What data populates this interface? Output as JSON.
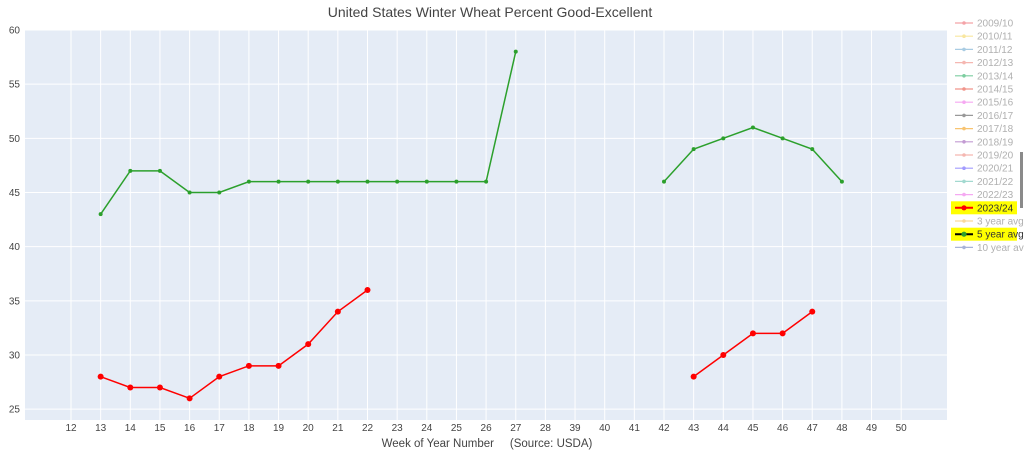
{
  "chart_data": {
    "type": "line",
    "title": "United States Winter Wheat Percent Good-Excellent",
    "xlabel": "Week of Year Number     (Source: USDA)",
    "ylabel": "",
    "categories": [
      "12",
      "13",
      "14",
      "15",
      "16",
      "17",
      "18",
      "19",
      "20",
      "21",
      "22",
      "23",
      "24",
      "25",
      "26",
      "27",
      "28",
      "39",
      "40",
      "41",
      "42",
      "43",
      "44",
      "45",
      "46",
      "47",
      "48",
      "49",
      "50"
    ],
    "ylim": [
      24,
      60
    ],
    "yticks": [
      25,
      30,
      35,
      40,
      45,
      50,
      55,
      60
    ],
    "grid": true,
    "legend_position": "right",
    "legend": [
      {
        "name": "2009/10",
        "color": "#f4a3a8",
        "highlight": false
      },
      {
        "name": "2010/11",
        "color": "#f9e79f",
        "highlight": false
      },
      {
        "name": "2011/12",
        "color": "#a9cce3",
        "highlight": false
      },
      {
        "name": "2012/13",
        "color": "#f5b7b1",
        "highlight": false
      },
      {
        "name": "2013/14",
        "color": "#7dcea0",
        "highlight": false
      },
      {
        "name": "2014/15",
        "color": "#f1948a",
        "highlight": false
      },
      {
        "name": "2015/16",
        "color": "#f5a9f2",
        "highlight": false
      },
      {
        "name": "2016/17",
        "color": "#999999",
        "highlight": false
      },
      {
        "name": "2017/18",
        "color": "#f8c471",
        "highlight": false
      },
      {
        "name": "2018/19",
        "color": "#c39bd3",
        "highlight": false
      },
      {
        "name": "2019/20",
        "color": "#f5b7b1",
        "highlight": false
      },
      {
        "name": "2020/21",
        "color": "#a29bfe",
        "highlight": false
      },
      {
        "name": "2021/22",
        "color": "#a3d9d0",
        "highlight": false
      },
      {
        "name": "2022/23",
        "color": "#f5a9f2",
        "highlight": false
      },
      {
        "name": "2023/24",
        "color": "#ff0000",
        "highlight": true
      },
      {
        "name": "3 year avg",
        "color": "#f9d99a",
        "highlight": false
      },
      {
        "name": "5 year avg",
        "color": "#2ca02c",
        "highlight": true
      },
      {
        "name": "10 year avg",
        "color": "#a8b4d8",
        "highlight": false
      }
    ],
    "series": [
      {
        "name": "5 year avg",
        "color": "#2ca02c",
        "segments": [
          [
            [
              "13",
              43
            ],
            [
              "14",
              47
            ],
            [
              "15",
              47
            ],
            [
              "16",
              45
            ],
            [
              "17",
              45
            ],
            [
              "18",
              46
            ],
            [
              "19",
              46
            ],
            [
              "20",
              46
            ],
            [
              "21",
              46
            ],
            [
              "22",
              46
            ],
            [
              "23",
              46
            ],
            [
              "24",
              46
            ],
            [
              "25",
              46
            ],
            [
              "26",
              46
            ],
            [
              "27",
              58
            ]
          ],
          [
            [
              "42",
              46
            ],
            [
              "43",
              49
            ],
            [
              "44",
              50
            ],
            [
              "45",
              51
            ],
            [
              "46",
              50
            ],
            [
              "47",
              49
            ],
            [
              "48",
              46
            ]
          ]
        ]
      },
      {
        "name": "2023/24",
        "color": "#ff0000",
        "segments": [
          [
            [
              "13",
              28
            ],
            [
              "14",
              27
            ],
            [
              "15",
              27
            ],
            [
              "16",
              26
            ],
            [
              "17",
              28
            ],
            [
              "18",
              29
            ],
            [
              "19",
              29
            ],
            [
              "20",
              31
            ],
            [
              "21",
              34
            ],
            [
              "22",
              36
            ]
          ],
          [
            [
              "43",
              28
            ],
            [
              "44",
              30
            ],
            [
              "45",
              32
            ],
            [
              "46",
              32
            ],
            [
              "47",
              34
            ]
          ]
        ]
      }
    ]
  }
}
